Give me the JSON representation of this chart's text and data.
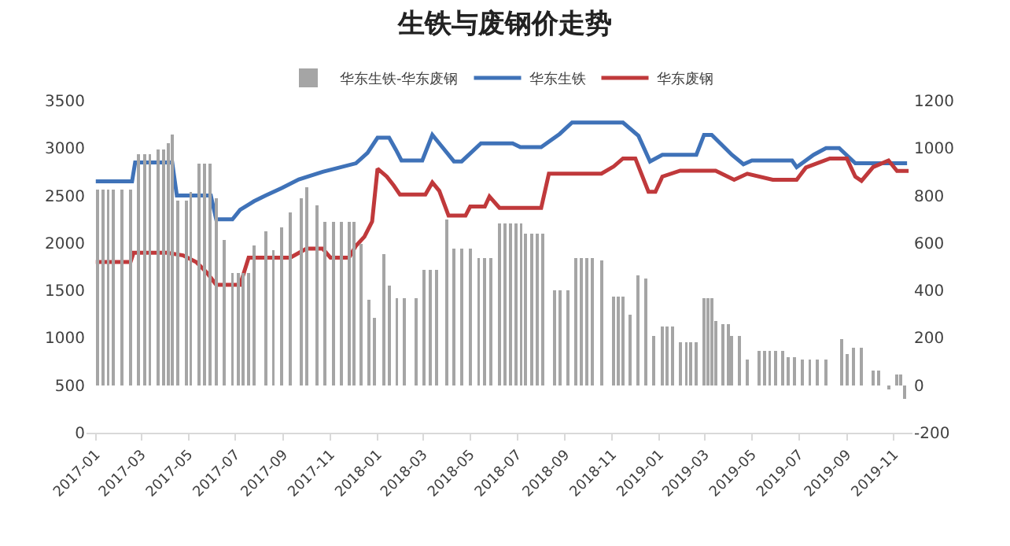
{
  "chart_data": {
    "type": "line",
    "title": "生铁与废钢价走势",
    "legend": "top",
    "xlim": [
      "2016-12-20",
      "2019-11-25"
    ],
    "xticks": [
      "2017-01",
      "2017-03",
      "2017-05",
      "2017-07",
      "2017-09",
      "2017-11",
      "2018-01",
      "2018-03",
      "2018-05",
      "2018-07",
      "2018-09",
      "2018-11",
      "2019-01",
      "2019-03",
      "2019-05",
      "2019-07",
      "2019-09",
      "2019-11"
    ],
    "ylim": [
      0,
      3500
    ],
    "yticks": [
      0,
      500,
      1000,
      1500,
      2000,
      2500,
      3000,
      3500
    ],
    "y2lim": [
      -200,
      1200
    ],
    "y2ticks": [
      -200,
      0,
      200,
      400,
      600,
      800,
      1000,
      1200
    ],
    "series": [
      {
        "name": "华东生铁-华东废钢",
        "type": "bar",
        "axis": "y2",
        "color": "#a5a5a5",
        "x": [
          "2017-01-03",
          "2017-01-10",
          "2017-01-17",
          "2017-01-24",
          "2017-02-04",
          "2017-02-15",
          "2017-02-25",
          "2017-03-05",
          "2017-03-12",
          "2017-03-23",
          "2017-03-30",
          "2017-04-05",
          "2017-04-10",
          "2017-04-17",
          "2017-04-28",
          "2017-05-04",
          "2017-05-15",
          "2017-05-22",
          "2017-05-29",
          "2017-06-06",
          "2017-06-16",
          "2017-06-27",
          "2017-07-05",
          "2017-07-11",
          "2017-07-18",
          "2017-07-25",
          "2017-08-09",
          "2017-08-19",
          "2017-08-30",
          "2017-09-10",
          "2017-09-24",
          "2017-10-01",
          "2017-10-15",
          "2017-10-25",
          "2017-11-05",
          "2017-11-15",
          "2017-11-25",
          "2017-12-01",
          "2017-12-11",
          "2017-12-21",
          "2017-12-28",
          "2018-01-09",
          "2018-01-16",
          "2018-01-26",
          "2018-02-05",
          "2018-02-20",
          "2018-03-02",
          "2018-03-10",
          "2018-03-18",
          "2018-04-01",
          "2018-04-10",
          "2018-04-20",
          "2018-05-01",
          "2018-05-12",
          "2018-05-20",
          "2018-05-28",
          "2018-06-08",
          "2018-06-15",
          "2018-06-22",
          "2018-06-29",
          "2018-07-06",
          "2018-07-12",
          "2018-07-20",
          "2018-07-27",
          "2018-08-03",
          "2018-08-18",
          "2018-08-25",
          "2018-09-05",
          "2018-09-15",
          "2018-09-22",
          "2018-09-29",
          "2018-10-06",
          "2018-10-18",
          "2018-11-03",
          "2018-11-09",
          "2018-11-15",
          "2018-11-24",
          "2018-12-04",
          "2018-12-15",
          "2018-12-25",
          "2019-01-05",
          "2019-01-11",
          "2019-01-18",
          "2019-01-28",
          "2019-02-05",
          "2019-02-11",
          "2019-02-18",
          "2019-02-28",
          "2019-03-05",
          "2019-03-10",
          "2019-03-15",
          "2019-03-24",
          "2019-04-01",
          "2019-04-05",
          "2019-04-15",
          "2019-04-25",
          "2019-05-10",
          "2019-05-17",
          "2019-05-24",
          "2019-06-01",
          "2019-06-10",
          "2019-06-17",
          "2019-06-25",
          "2019-07-05",
          "2019-07-15",
          "2019-07-25",
          "2019-08-05",
          "2019-08-25",
          "2019-09-01",
          "2019-09-10",
          "2019-09-20",
          "2019-10-05",
          "2019-10-12",
          "2019-10-25",
          "2019-11-05",
          "2019-11-10",
          "2019-11-15"
        ],
        "values": [
          825,
          825,
          825,
          825,
          825,
          825,
          974,
          974,
          974,
          995,
          995,
          1020,
          1058,
          779,
          779,
          815,
          936,
          936,
          936,
          790,
          614,
          475,
          475,
          475,
          475,
          589,
          650,
          570,
          665,
          728,
          790,
          836,
          760,
          690,
          690,
          690,
          690,
          690,
          595,
          361,
          285,
          553,
          420,
          368,
          368,
          368,
          487,
          487,
          487,
          700,
          576,
          576,
          576,
          538,
          538,
          538,
          683,
          683,
          683,
          683,
          683,
          639,
          639,
          639,
          639,
          399,
          399,
          399,
          538,
          538,
          538,
          538,
          525,
          373,
          373,
          373,
          297,
          462,
          450,
          209,
          247,
          247,
          247,
          183,
          183,
          183,
          183,
          368,
          368,
          368,
          272,
          259,
          259,
          209,
          209,
          108,
          146,
          146,
          146,
          146,
          146,
          120,
          120,
          108,
          108,
          108,
          108,
          196,
          133,
          158,
          158,
          62,
          62,
          -19,
          45,
          45,
          -56
        ]
      },
      {
        "name": "华东生铁",
        "color": "#3f72b8",
        "x": [
          "2017-01-01",
          "2017-02-17",
          "2017-02-21",
          "2017-04-10",
          "2017-04-16",
          "2017-05-30",
          "2017-06-06",
          "2017-06-27",
          "2017-07-07",
          "2017-07-25",
          "2017-08-09",
          "2017-08-30",
          "2017-09-21",
          "2017-10-22",
          "2017-12-04",
          "2017-12-19",
          "2018-01-01",
          "2018-01-16",
          "2018-01-25",
          "2018-02-01",
          "2018-02-28",
          "2018-03-13",
          "2018-03-22",
          "2018-04-10",
          "2018-04-20",
          "2018-05-15",
          "2018-06-25",
          "2018-07-05",
          "2018-08-01",
          "2018-08-25",
          "2018-09-10",
          "2018-11-15",
          "2018-12-05",
          "2018-12-20",
          "2019-01-05",
          "2019-02-18",
          "2019-02-28",
          "2019-03-10",
          "2019-04-05",
          "2019-04-20",
          "2019-05-01",
          "2019-06-22",
          "2019-06-28",
          "2019-07-20",
          "2019-08-05",
          "2019-08-22",
          "2019-09-12",
          "2019-11-18"
        ],
        "values": [
          2650,
          2650,
          2850,
          2850,
          2500,
          2500,
          2250,
          2250,
          2350,
          2440,
          2500,
          2580,
          2670,
          2750,
          2840,
          2950,
          3110,
          3110,
          2980,
          2870,
          2870,
          3140,
          3050,
          2860,
          2860,
          3050,
          3050,
          3010,
          3010,
          3150,
          3270,
          3270,
          3130,
          2860,
          2930,
          2930,
          3140,
          3140,
          2930,
          2830,
          2870,
          2870,
          2800,
          2930,
          3000,
          3000,
          2840,
          2840
        ]
      },
      {
        "name": "华东废钢",
        "color": "#c0393b",
        "x": [
          "2017-01-01",
          "2017-02-15",
          "2017-02-19",
          "2017-04-03",
          "2017-04-24",
          "2017-05-11",
          "2017-05-25",
          "2017-06-06",
          "2017-07-07",
          "2017-07-18",
          "2017-09-10",
          "2017-10-01",
          "2017-10-22",
          "2017-11-01",
          "2017-11-25",
          "2017-12-04",
          "2017-12-15",
          "2017-12-25",
          "2018-01-01",
          "2018-01-13",
          "2018-01-22",
          "2018-01-30",
          "2018-03-04",
          "2018-03-13",
          "2018-03-22",
          "2018-04-03",
          "2018-04-25",
          "2018-05-01",
          "2018-05-20",
          "2018-05-26",
          "2018-06-08",
          "2018-08-01",
          "2018-08-11",
          "2018-10-18",
          "2018-11-03",
          "2018-11-15",
          "2018-12-01",
          "2018-12-18",
          "2018-12-27",
          "2019-01-05",
          "2019-01-28",
          "2019-03-15",
          "2019-04-08",
          "2019-04-25",
          "2019-05-28",
          "2019-06-28",
          "2019-07-10",
          "2019-08-10",
          "2019-09-01",
          "2019-09-12",
          "2019-09-20",
          "2019-10-05",
          "2019-10-25",
          "2019-11-05",
          "2019-11-20"
        ],
        "values": [
          1800,
          1800,
          1897,
          1897,
          1870,
          1800,
          1687,
          1560,
          1560,
          1845,
          1845,
          1940,
          1940,
          1845,
          1845,
          1970,
          2066,
          2226,
          2783,
          2700,
          2606,
          2510,
          2510,
          2638,
          2550,
          2289,
          2289,
          2384,
          2384,
          2490,
          2370,
          2370,
          2731,
          2731,
          2807,
          2891,
          2891,
          2540,
          2540,
          2700,
          2762,
          2762,
          2667,
          2730,
          2667,
          2667,
          2796,
          2891,
          2891,
          2700,
          2655,
          2800,
          2870,
          2760,
          2760
        ]
      }
    ]
  }
}
